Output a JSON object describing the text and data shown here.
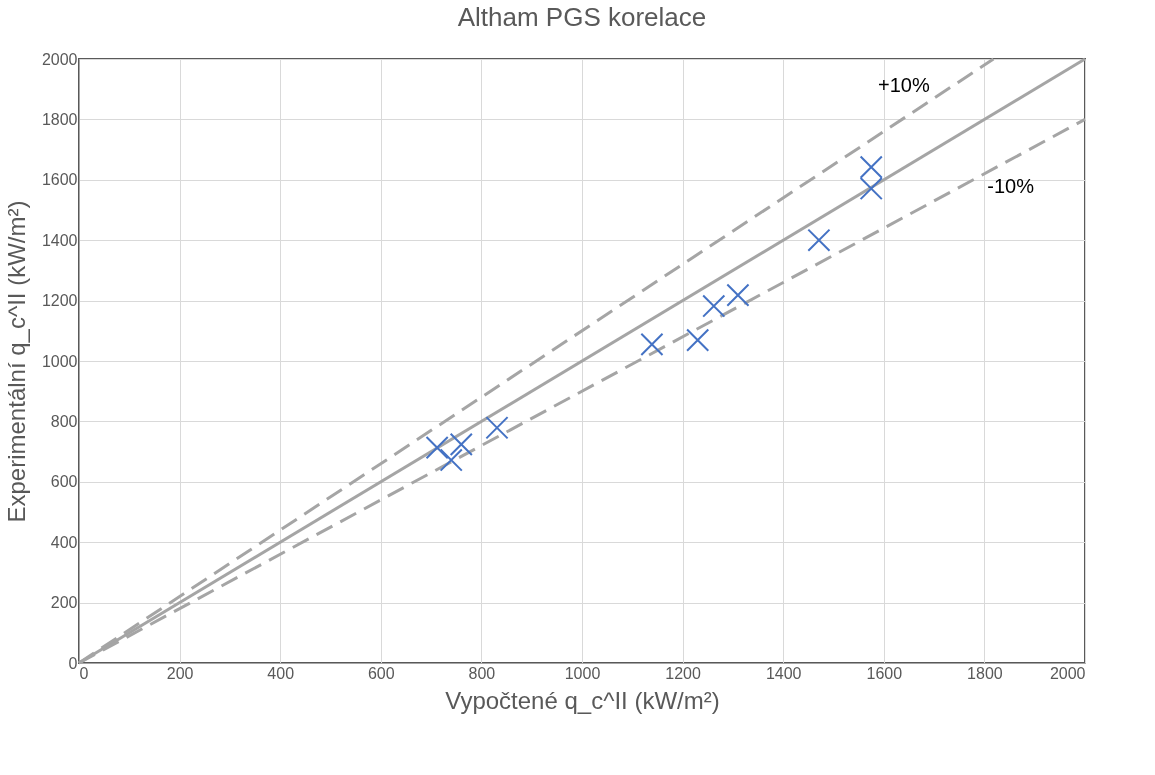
{
  "chart_data": {
    "type": "scatter",
    "title": "Altham PGS korelace",
    "xlabel": "Vypočtené q_c^II (kW/m²)",
    "ylabel": "Experimentální q_c^II (kW/m²)",
    "xlim": [
      0,
      2000
    ],
    "ylim": [
      0,
      2000
    ],
    "xticks": [
      0,
      200,
      400,
      600,
      800,
      1000,
      1200,
      1400,
      1600,
      1800,
      2000
    ],
    "yticks": [
      0,
      200,
      400,
      600,
      800,
      1000,
      1200,
      1400,
      1600,
      1800,
      2000
    ],
    "grid": true,
    "series": [
      {
        "type": "line",
        "color": "#a5a5a5",
        "line_style": "solid",
        "x": [
          0,
          2000
        ],
        "values": [
          0,
          2000
        ]
      },
      {
        "type": "line",
        "color": "#a5a5a5",
        "line_style": "dashed",
        "x": [
          0,
          1818
        ],
        "values": [
          0,
          2000
        ]
      },
      {
        "type": "line",
        "color": "#a5a5a5",
        "line_style": "dashed",
        "x": [
          0,
          2000
        ],
        "values": [
          0,
          1800
        ]
      },
      {
        "color": "#4472c4",
        "marker": "cross",
        "x": [
          712,
          740,
          760,
          831,
          1139,
          1230,
          1262,
          1310,
          1471,
          1575,
          1575
        ],
        "values": [
          713,
          672,
          724,
          779,
          1055,
          1069,
          1182,
          1218,
          1400,
          1642,
          1571
        ]
      }
    ],
    "annotations": [
      {
        "text": "+10%",
        "x": 1640,
        "y": 1804
      },
      {
        "text": "-10%",
        "x": 1750,
        "y": 1575
      }
    ]
  }
}
